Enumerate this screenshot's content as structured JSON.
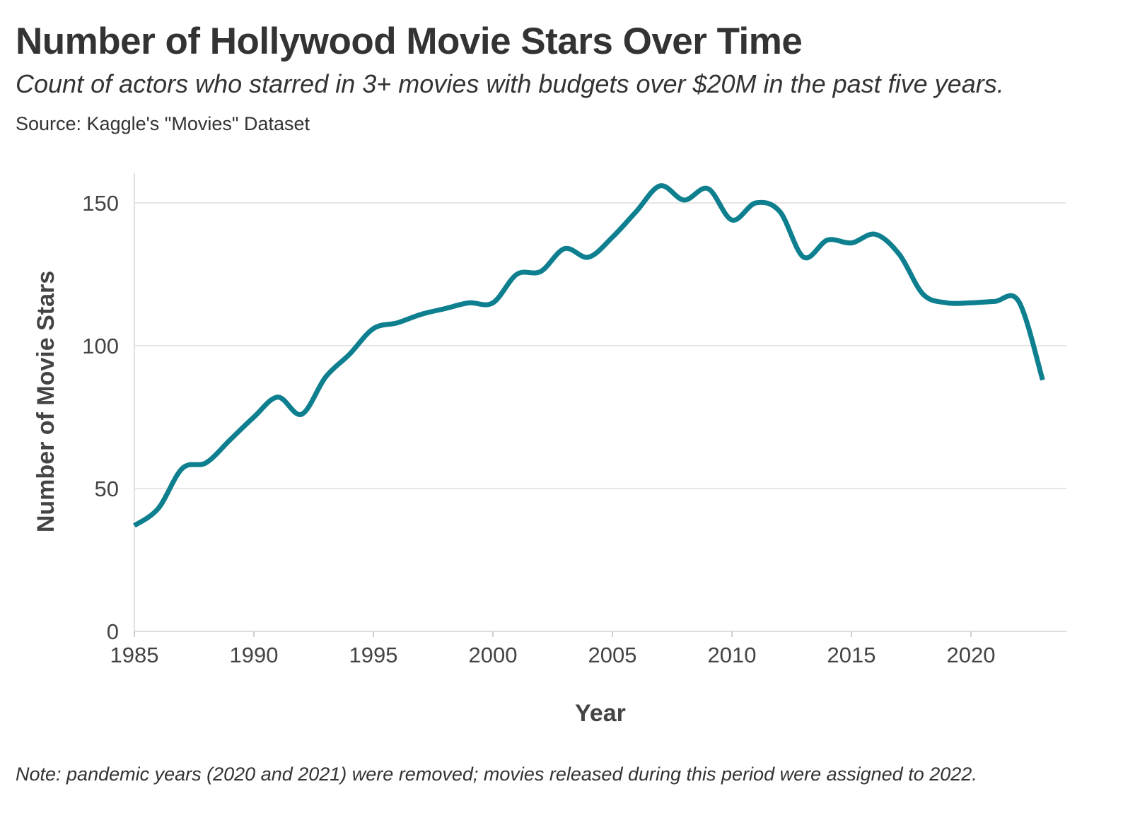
{
  "header": {
    "title": "Number of Hollywood Movie Stars Over Time",
    "subtitle": "Count of actors who starred in 3+ movies with budgets over $20M in the past five years.",
    "source": "Source: Kaggle's \"Movies\" Dataset"
  },
  "footer": {
    "note": "Note: pandemic years (2020 and 2021) were removed; movies released during this period were assigned to 2022."
  },
  "colors": {
    "line": "#0d7f8f",
    "grid": "#e6e6e6",
    "text": "#333333"
  },
  "chart_data": {
    "type": "line",
    "title": "Number of Hollywood Movie Stars Over Time",
    "xlabel": "Year",
    "ylabel": "Number of Movie Stars",
    "xlim": [
      1985,
      2024
    ],
    "ylim": [
      0,
      160
    ],
    "x_ticks": [
      1985,
      1990,
      1995,
      2000,
      2005,
      2010,
      2015,
      2020
    ],
    "y_ticks": [
      0,
      50,
      100,
      150
    ],
    "grid": "horizontal",
    "series": [
      {
        "x": [
          1985,
          1986,
          1987,
          1988,
          1989,
          1990,
          1991,
          1992,
          1993,
          1994,
          1995,
          1996,
          1997,
          1998,
          1999,
          2000,
          2001,
          2002,
          2003,
          2004,
          2005,
          2006,
          2007,
          2008,
          2009,
          2010,
          2011,
          2012,
          2013,
          2014,
          2015,
          2016,
          2017,
          2018,
          2019,
          2020,
          2021,
          2022,
          2023
        ],
        "values": [
          37,
          43,
          57,
          59,
          67,
          75,
          82,
          76,
          89,
          97,
          106,
          108,
          111,
          113,
          115,
          115,
          125,
          126,
          134,
          131,
          138,
          147,
          156,
          151,
          155,
          144,
          150,
          147,
          131,
          137,
          136,
          139,
          132,
          118,
          115,
          115,
          115.5,
          115.5,
          88
        ]
      }
    ]
  }
}
